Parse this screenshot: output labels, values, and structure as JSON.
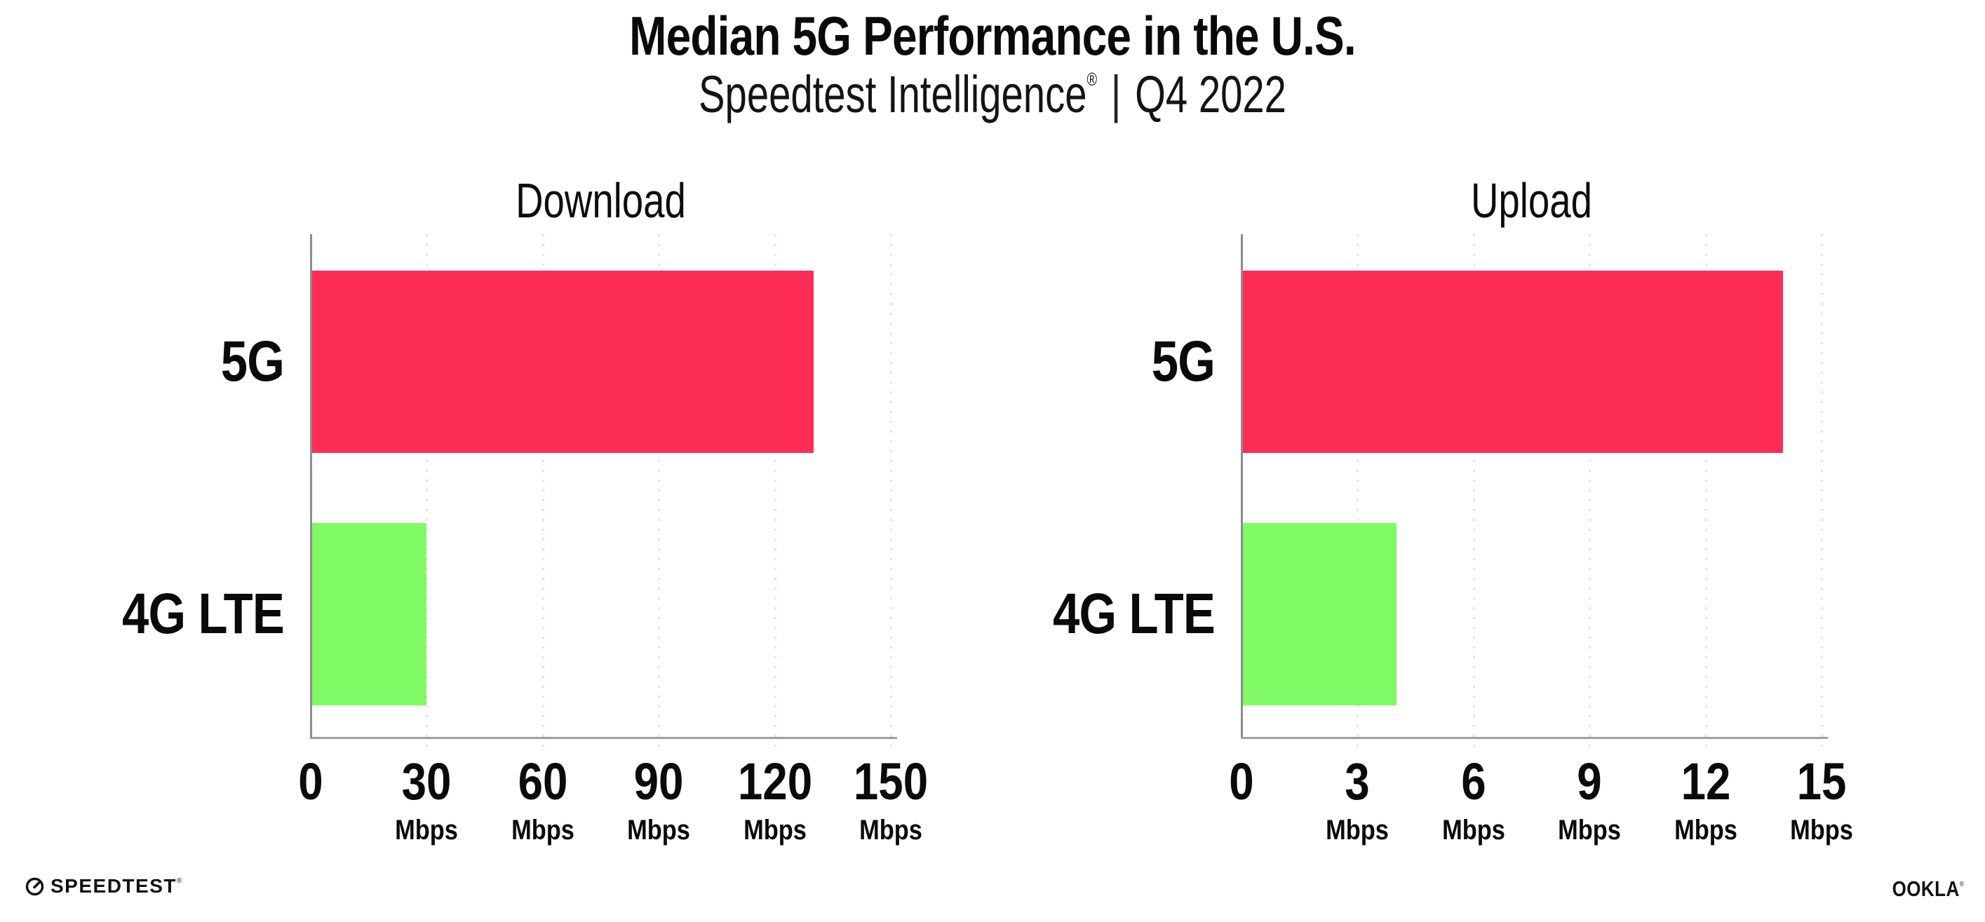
{
  "header": {
    "title": "Median 5G Performance in the U.S.",
    "subtitle_brand": "Speedtest Intelligence",
    "subtitle_reg": "®",
    "subtitle_divider": "|",
    "subtitle_period": "Q4 2022"
  },
  "chart_data": [
    {
      "type": "bar",
      "orientation": "horizontal",
      "title": "Download",
      "categories": [
        "5G",
        "4G LTE"
      ],
      "values": [
        130,
        30
      ],
      "unit": "Mbps",
      "xlim": [
        0,
        150
      ],
      "ticks": [
        0,
        30,
        60,
        90,
        120,
        150
      ],
      "bar_colors": [
        "#FD2D56",
        "#7FFA64"
      ],
      "grid": "dotted-vertical-light",
      "legend": "none"
    },
    {
      "type": "bar",
      "orientation": "horizontal",
      "title": "Upload",
      "categories": [
        "5G",
        "4G LTE"
      ],
      "values": [
        14,
        4
      ],
      "unit": "Mbps",
      "xlim": [
        0,
        15
      ],
      "ticks": [
        0,
        3,
        6,
        9,
        12,
        15
      ],
      "bar_colors": [
        "#FD2D56",
        "#7FFA64"
      ],
      "grid": "dotted-vertical-light",
      "legend": "none"
    }
  ],
  "footer": {
    "speedtest_text": "SPEEDTEST",
    "speedtest_reg": "®",
    "ookla_text": "OOKLA",
    "ookla_reg": "®"
  },
  "colors": {
    "bar_5g": "#FD2D56",
    "bar_4g_lte": "#7FFA64",
    "gridline": "#E2E2EC",
    "y_axis_line": "#8C8C8C",
    "x_axis_line": "#9D9DA3",
    "text": "#0A0A0A",
    "background": "#FFFFFF"
  }
}
